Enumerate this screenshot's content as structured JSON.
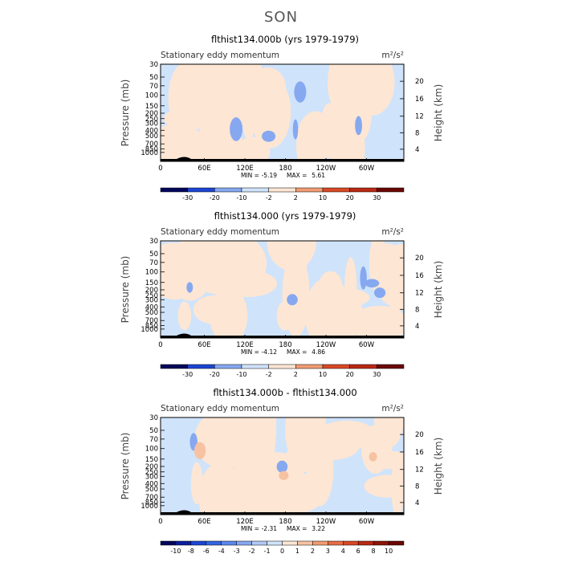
{
  "season": "SON",
  "colors": {
    "neutral_fill": "#cfe3fb",
    "positive_fill": "#fde6d4",
    "neg_blues": [
      "#03075a",
      "#0a1f9e",
      "#1c45d2",
      "#3366e0",
      "#5a87ea",
      "#86a8f0",
      "#b1c9f6",
      "#cfe3fb"
    ],
    "pos_reds": [
      "#fde6d4",
      "#f7c2a2",
      "#f19b73",
      "#e76c45",
      "#d94925",
      "#b92914",
      "#8e1407",
      "#6a0702"
    ]
  },
  "chart_data": [
    {
      "type": "heatmap",
      "title": "flthist134.000b (yrs 1979-1979)",
      "variable": "Stationary eddy momentum",
      "units": "m²/s²",
      "ylabel": "Pressure (mb)",
      "ylabel_right": "Height (km)",
      "x_ticks": [
        "0",
        "60E",
        "120E",
        "180",
        "120W",
        "60W"
      ],
      "y_ticks": [
        "30",
        "50",
        "70",
        "100",
        "150",
        "200",
        "250",
        "300",
        "400",
        "500",
        "700",
        "850",
        "1000"
      ],
      "y_right_ticks": [
        "20",
        "16",
        "12",
        "8",
        "4"
      ],
      "min_label": "MIN =",
      "min_value": "-5.19",
      "max_label": "MAX =",
      "max_value": "5.61",
      "colorbar_labels": [
        "-30",
        "-20",
        "-10",
        "-2",
        "2",
        "10",
        "20",
        "30"
      ],
      "seed": 7
    },
    {
      "type": "heatmap",
      "title": "flthist134.000 (yrs 1979-1979)",
      "variable": "Stationary eddy momentum",
      "units": "m²/s²",
      "ylabel": "Pressure (mb)",
      "ylabel_right": "Height (km)",
      "x_ticks": [
        "0",
        "60E",
        "120E",
        "180",
        "120W",
        "60W"
      ],
      "y_ticks": [
        "30",
        "50",
        "70",
        "100",
        "150",
        "200",
        "250",
        "300",
        "400",
        "500",
        "700",
        "850",
        "1000"
      ],
      "y_right_ticks": [
        "20",
        "16",
        "12",
        "8",
        "4"
      ],
      "min_label": "MIN =",
      "min_value": "-4.12",
      "max_label": "MAX =",
      "max_value": "4.86",
      "colorbar_labels": [
        "-30",
        "-20",
        "-10",
        "-2",
        "2",
        "10",
        "20",
        "30"
      ],
      "seed": 13
    },
    {
      "type": "heatmap",
      "title": "flthist134.000b - flthist134.000",
      "variable": "Stationary eddy momentum",
      "units": "m²/s²",
      "ylabel": "Pressure (mb)",
      "ylabel_right": "Height (km)",
      "x_ticks": [
        "0",
        "60E",
        "120E",
        "180",
        "120W",
        "60W"
      ],
      "y_ticks": [
        "30",
        "50",
        "70",
        "100",
        "150",
        "200",
        "250",
        "300",
        "400",
        "500",
        "700",
        "850",
        "1000"
      ],
      "y_right_ticks": [
        "20",
        "16",
        "12",
        "8",
        "4"
      ],
      "min_label": "MIN =",
      "min_value": "-2.31",
      "max_label": "MAX =",
      "max_value": "3.22",
      "colorbar_labels": [
        "-10",
        "-8",
        "-6",
        "-4",
        "-3",
        "-2",
        "-1",
        "0",
        "1",
        "2",
        "3",
        "4",
        "6",
        "8",
        "10"
      ],
      "seed": 29
    }
  ]
}
